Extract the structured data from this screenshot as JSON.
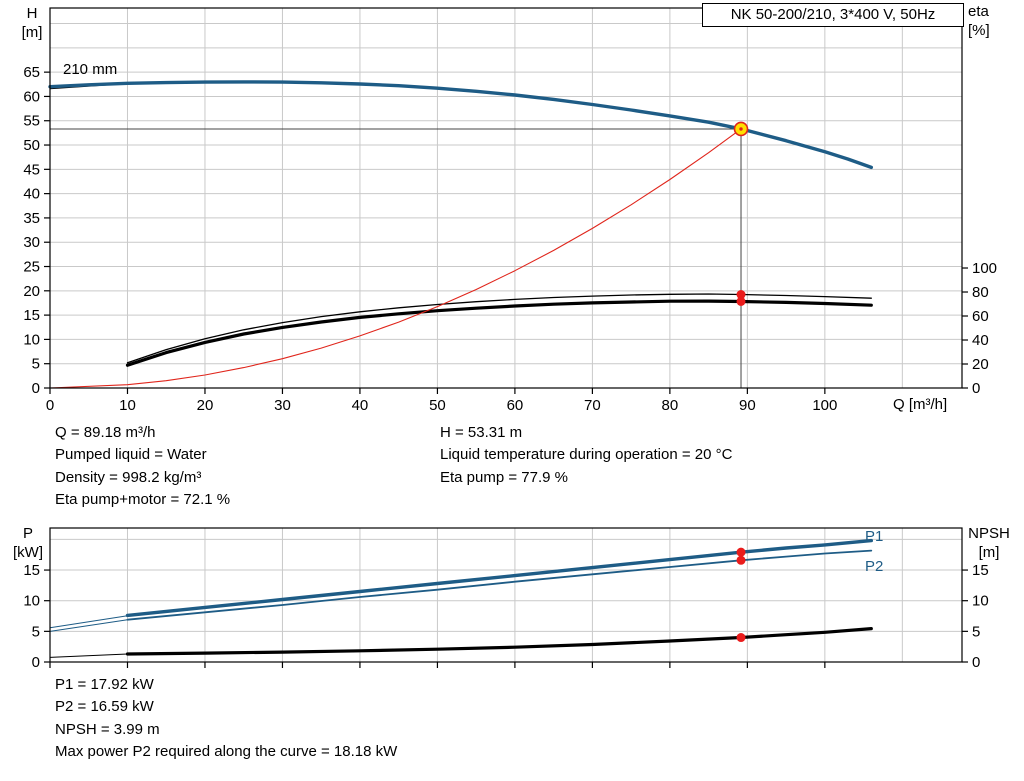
{
  "meta": {
    "title_box": "NK 50-200/210, 3*400 V, 50Hz"
  },
  "labels": {
    "top_left_axis": [
      "H",
      "[m]"
    ],
    "top_right_axis": [
      "eta",
      "[%]"
    ],
    "x_axis": "Q [m³/h]",
    "bottom_left_axis": [
      "P",
      "[kW]"
    ],
    "bottom_right_axis": [
      "NPSH",
      "[m]"
    ],
    "impeller_diameter": "210 mm",
    "p1": "P1",
    "p2": "P2"
  },
  "annotations": {
    "col1": [
      "Q = 89.18 m³/h",
      "Pumped liquid = Water",
      "Density = 998.2 kg/m³",
      "Eta pump+motor = 72.1 %"
    ],
    "col2": [
      "H = 53.31 m",
      "Liquid temperature during operation = 20 °C",
      "Eta pump = 77.9 %"
    ],
    "bottom": [
      "P1 = 17.92 kW",
      "P2 = 16.59 kW",
      "NPSH = 3.99 m",
      "Max power P2 required along the curve = 18.18 kW"
    ]
  },
  "colors": {
    "curve_blue": "#1e5c86",
    "curve_black": "#000000",
    "system_red": "#e0251b",
    "dot_red": "#ea1c1c",
    "marker_fill": "#ffdf00",
    "marker_stroke": "#e0251b",
    "grid": "#c9c9c9",
    "frame": "#000000",
    "crosshair": "#444444"
  },
  "chart_data": [
    {
      "type": "line",
      "name": "qh-chart",
      "title": "NK 50-200/210, 3*400 V, 50Hz",
      "x": {
        "label": "Q [m³/h]",
        "range": [
          0,
          117.7
        ],
        "ticks": [
          0,
          10,
          20,
          30,
          40,
          50,
          60,
          70,
          80,
          90,
          100
        ],
        "grid_step": 10,
        "show_labels": true
      },
      "y_left": {
        "label": "H [m]",
        "range": [
          0,
          78.2
        ],
        "ticks": [
          0,
          5,
          10,
          15,
          20,
          25,
          30,
          35,
          40,
          45,
          50,
          55,
          60,
          65
        ],
        "grid_step": 5
      },
      "y_right": {
        "label": "eta [%]",
        "range": [
          0,
          316.7
        ],
        "ticks": [
          0,
          20,
          40,
          60,
          80,
          100
        ]
      },
      "series": [
        {
          "name": "leader-210mm",
          "axis": "left",
          "color": "curve_black",
          "width": 1,
          "points": [
            [
              0,
              61.6
            ],
            [
              10,
              62.65
            ]
          ]
        },
        {
          "name": "pump-210mm",
          "axis": "left",
          "color": "curve_blue",
          "width": 3.4,
          "points": [
            [
              0,
              62.0
            ],
            [
              5,
              62.4
            ],
            [
              10,
              62.7
            ],
            [
              15,
              62.85
            ],
            [
              20,
              62.95
            ],
            [
              25,
              63.0
            ],
            [
              30,
              62.95
            ],
            [
              35,
              62.8
            ],
            [
              40,
              62.55
            ],
            [
              45,
              62.2
            ],
            [
              50,
              61.7
            ],
            [
              55,
              61.05
            ],
            [
              60,
              60.3
            ],
            [
              65,
              59.4
            ],
            [
              70,
              58.35
            ],
            [
              75,
              57.2
            ],
            [
              80,
              56.0
            ],
            [
              85,
              54.7
            ],
            [
              89.18,
              53.31
            ],
            [
              95,
              50.9
            ],
            [
              100,
              48.6
            ],
            [
              103,
              47.1
            ],
            [
              106,
              45.4
            ]
          ]
        },
        {
          "name": "eta-pump",
          "axis": "right",
          "color": "curve_black",
          "width": 1.3,
          "points": [
            [
              10,
              21
            ],
            [
              15,
              32
            ],
            [
              20,
              41
            ],
            [
              25,
              48.5
            ],
            [
              30,
              54.5
            ],
            [
              35,
              59.5
            ],
            [
              40,
              63.5
            ],
            [
              45,
              66.8
            ],
            [
              50,
              69.6
            ],
            [
              55,
              71.9
            ],
            [
              60,
              73.8
            ],
            [
              65,
              75.4
            ],
            [
              70,
              76.6
            ],
            [
              75,
              77.5
            ],
            [
              80,
              78.1
            ],
            [
              85,
              78.3
            ],
            [
              89.18,
              77.9
            ],
            [
              95,
              77.1
            ],
            [
              100,
              76.2
            ],
            [
              106,
              74.8
            ]
          ]
        },
        {
          "name": "eta-pump-motor",
          "axis": "right",
          "color": "curve_black",
          "width": 3.2,
          "points": [
            [
              10,
              19
            ],
            [
              15,
              29.5
            ],
            [
              20,
              38
            ],
            [
              25,
              45
            ],
            [
              30,
              50.5
            ],
            [
              35,
              55
            ],
            [
              40,
              58.8
            ],
            [
              45,
              61.8
            ],
            [
              50,
              64.4
            ],
            [
              55,
              66.5
            ],
            [
              60,
              68.3
            ],
            [
              65,
              69.8
            ],
            [
              70,
              70.9
            ],
            [
              75,
              71.7
            ],
            [
              80,
              72.3
            ],
            [
              85,
              72.4
            ],
            [
              89.18,
              72.1
            ],
            [
              95,
              71.3
            ],
            [
              100,
              70.4
            ],
            [
              106,
              69.0
            ]
          ]
        },
        {
          "name": "system-curve",
          "axis": "left",
          "color": "system_red",
          "width": 1.1,
          "points": [
            [
              0,
              0
            ],
            [
              10,
              0.67
            ],
            [
              15,
              1.51
            ],
            [
              20,
              2.68
            ],
            [
              25,
              4.19
            ],
            [
              30,
              6.03
            ],
            [
              35,
              8.21
            ],
            [
              40,
              10.72
            ],
            [
              45,
              13.57
            ],
            [
              50,
              16.76
            ],
            [
              55,
              20.28
            ],
            [
              60,
              24.13
            ],
            [
              65,
              28.32
            ],
            [
              70,
              32.84
            ],
            [
              75,
              37.7
            ],
            [
              80,
              42.9
            ],
            [
              85,
              48.43
            ],
            [
              89.18,
              53.31
            ]
          ]
        }
      ],
      "crosshair": {
        "q": 89.18,
        "h": 53.31
      },
      "markers": {
        "duty_point": {
          "q": 89.18,
          "h": 53.31
        },
        "dots": [
          {
            "axis": "right",
            "q": 89.18,
            "v": 77.9
          },
          {
            "axis": "right",
            "q": 89.18,
            "v": 72.1
          }
        ]
      }
    },
    {
      "type": "line",
      "name": "power-npsh-chart",
      "x": {
        "label": "Q [m³/h]",
        "range": [
          0,
          117.7
        ],
        "ticks": [
          0,
          10,
          20,
          30,
          40,
          50,
          60,
          70,
          80,
          90,
          100
        ],
        "grid_step": 10,
        "show_labels": false
      },
      "y_left": {
        "label": "P [kW]",
        "range": [
          0,
          21.86
        ],
        "ticks": [
          0,
          5,
          10,
          15
        ],
        "grid_step": 5
      },
      "y_right": {
        "label": "NPSH [m]",
        "range": [
          0,
          21.86
        ],
        "ticks": [
          0,
          5,
          10,
          15
        ]
      },
      "series": [
        {
          "name": "p1-leader",
          "axis": "left",
          "color": "curve_blue",
          "width": 1,
          "points": [
            [
              0,
              5.6
            ],
            [
              10,
              7.55
            ]
          ]
        },
        {
          "name": "p2-leader",
          "axis": "left",
          "color": "curve_blue",
          "width": 1,
          "points": [
            [
              0,
              5.0
            ],
            [
              10,
              6.9
            ]
          ]
        },
        {
          "name": "npsh-leader",
          "axis": "right",
          "color": "curve_black",
          "width": 1,
          "points": [
            [
              0,
              0.75
            ],
            [
              10,
              1.3
            ]
          ]
        },
        {
          "name": "p1",
          "axis": "left",
          "color": "curve_blue",
          "width": 3.4,
          "points": [
            [
              10,
              7.6
            ],
            [
              20,
              8.9
            ],
            [
              30,
              10.2
            ],
            [
              40,
              11.5
            ],
            [
              50,
              12.8
            ],
            [
              60,
              14.1
            ],
            [
              70,
              15.4
            ],
            [
              80,
              16.7
            ],
            [
              89.18,
              17.92
            ],
            [
              95,
              18.6
            ],
            [
              100,
              19.1
            ],
            [
              106,
              19.8
            ]
          ]
        },
        {
          "name": "p2",
          "axis": "left",
          "color": "curve_blue",
          "width": 1.8,
          "points": [
            [
              10,
              6.9
            ],
            [
              20,
              8.1
            ],
            [
              30,
              9.3
            ],
            [
              40,
              10.6
            ],
            [
              50,
              11.8
            ],
            [
              60,
              13.1
            ],
            [
              70,
              14.3
            ],
            [
              80,
              15.5
            ],
            [
              89.18,
              16.59
            ],
            [
              95,
              17.2
            ],
            [
              100,
              17.7
            ],
            [
              106,
              18.18
            ]
          ]
        },
        {
          "name": "npsh",
          "axis": "right",
          "color": "curve_black",
          "width": 3.2,
          "points": [
            [
              10,
              1.3
            ],
            [
              20,
              1.45
            ],
            [
              30,
              1.62
            ],
            [
              40,
              1.82
            ],
            [
              50,
              2.08
            ],
            [
              60,
              2.42
            ],
            [
              70,
              2.86
            ],
            [
              80,
              3.42
            ],
            [
              89.18,
              3.99
            ],
            [
              95,
              4.45
            ],
            [
              100,
              4.85
            ],
            [
              106,
              5.45
            ]
          ]
        }
      ],
      "markers": {
        "dots": [
          {
            "axis": "left",
            "q": 89.18,
            "v": 17.92
          },
          {
            "axis": "left",
            "q": 89.18,
            "v": 16.59
          },
          {
            "axis": "right",
            "q": 89.18,
            "v": 3.99
          }
        ]
      }
    }
  ]
}
